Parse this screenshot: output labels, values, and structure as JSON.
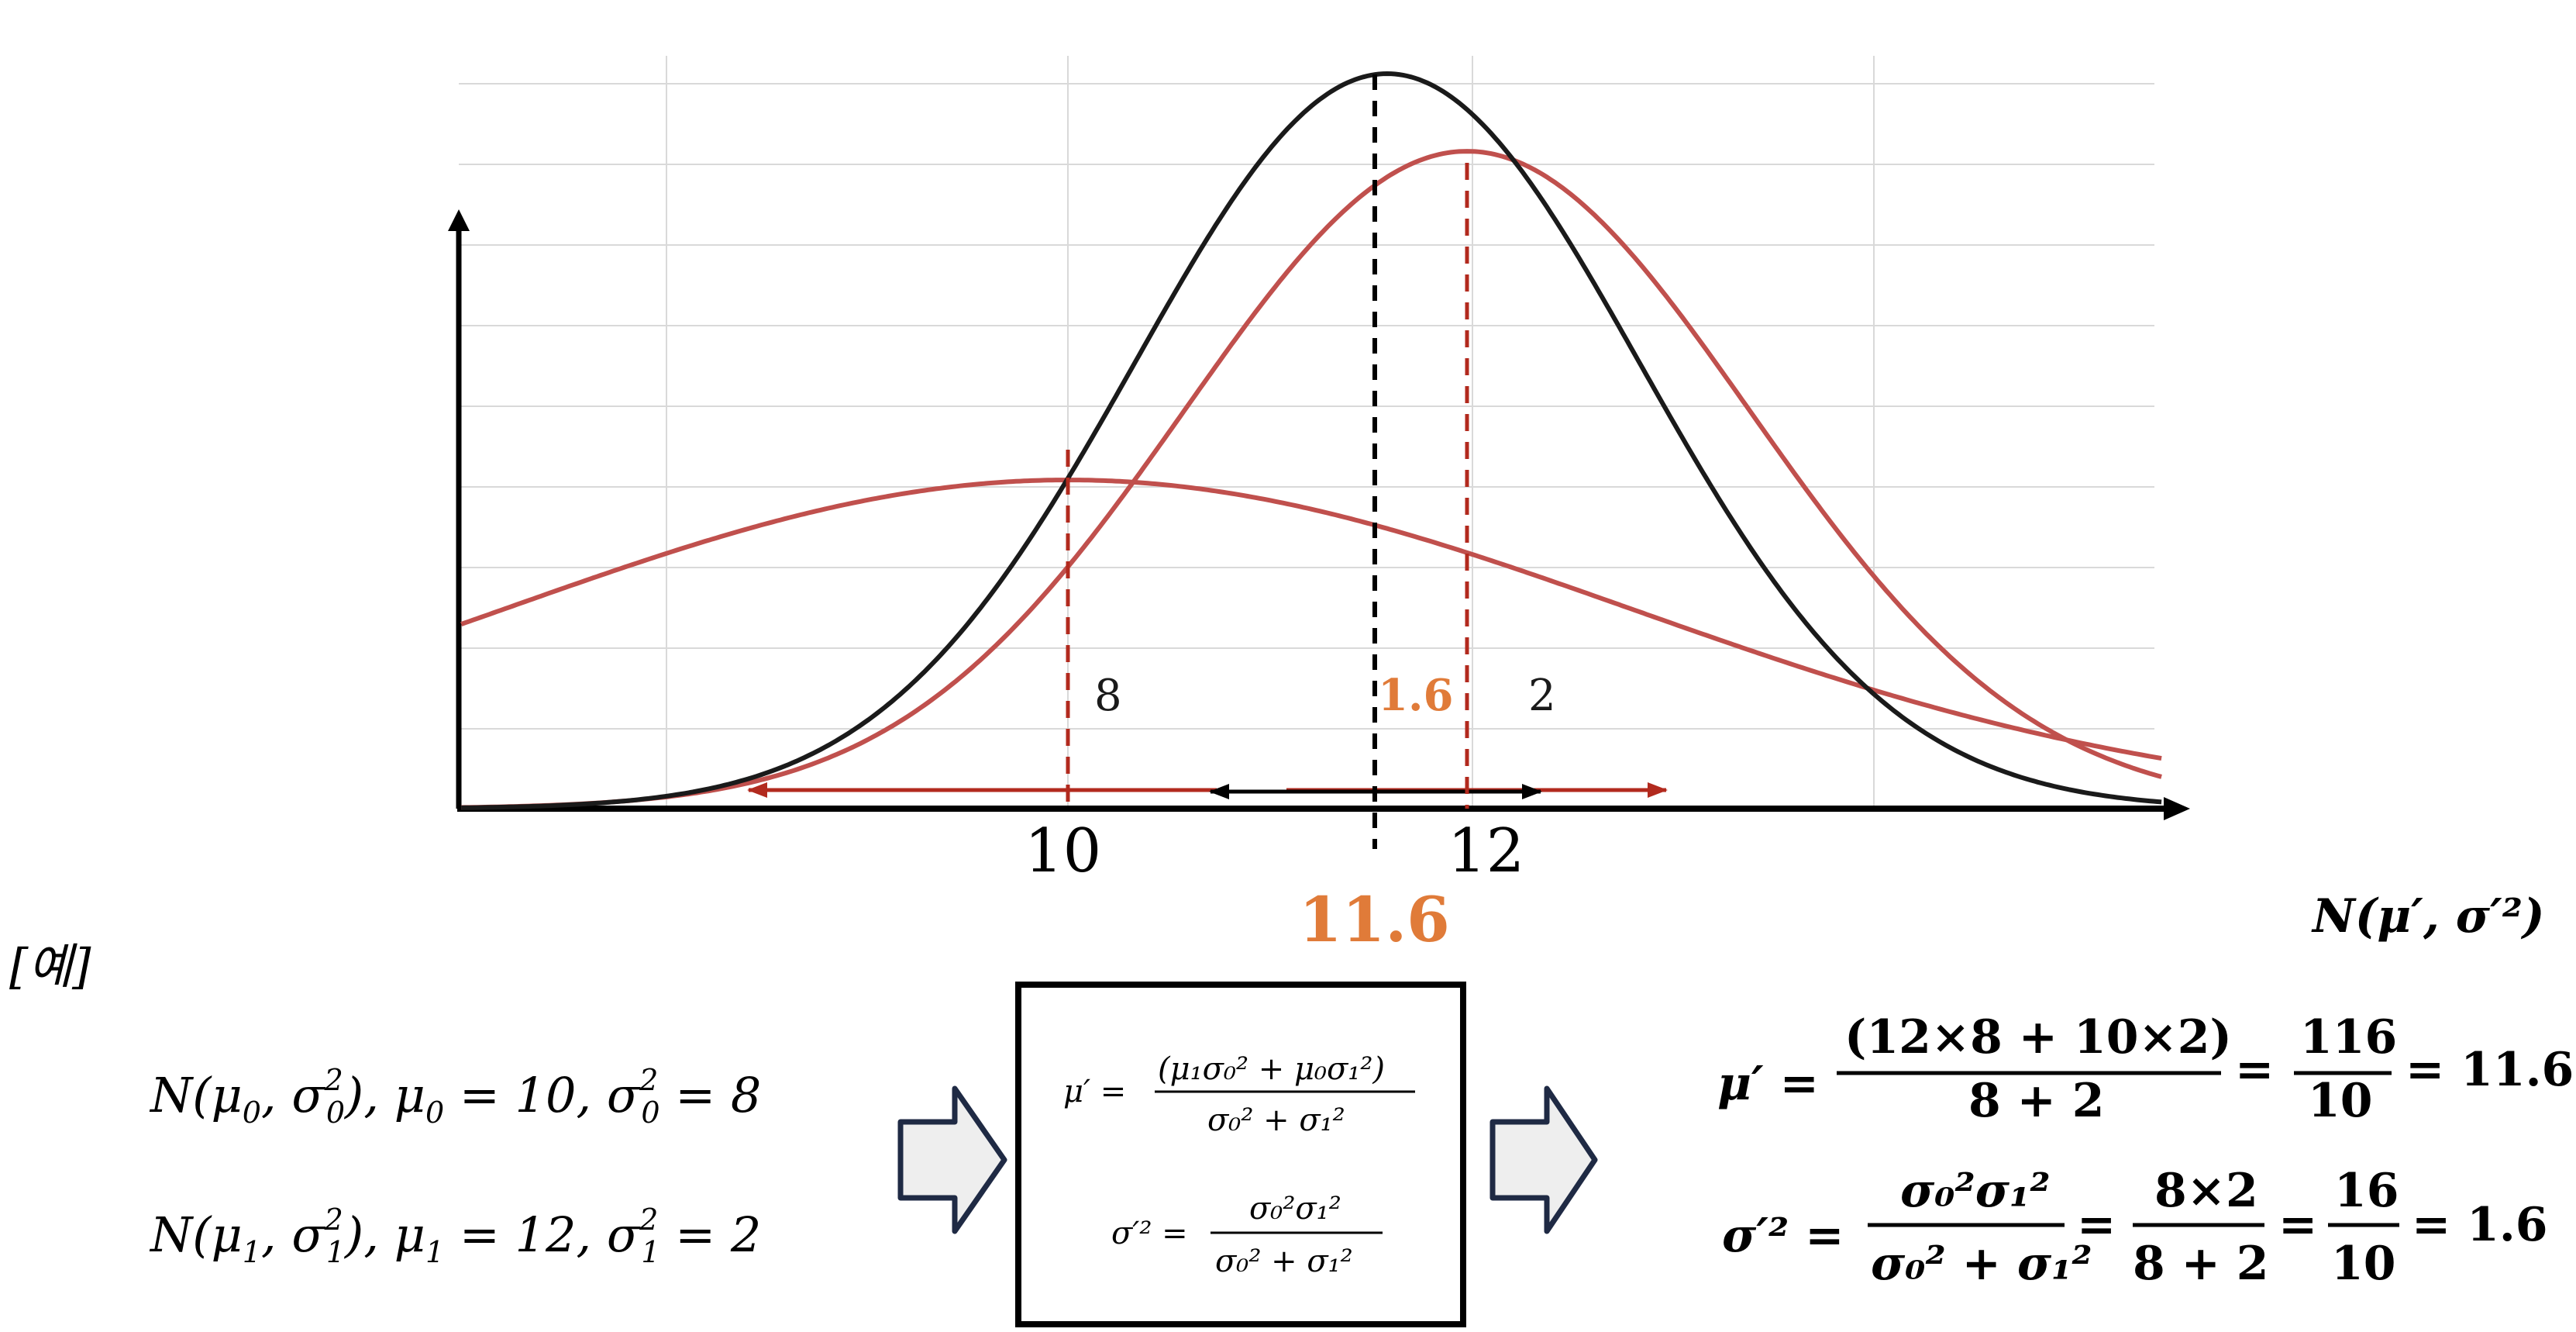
{
  "labels": {
    "example": "[예]",
    "value_8": "8",
    "value_2": "2",
    "posterior_variance": "1.6",
    "posterior_mean": "11.6",
    "tick_10": "10",
    "tick_12": "12"
  },
  "colors": {
    "prior_curve": "#c0504d",
    "posterior_curve": "#1a1a1a",
    "dashed_red": "#b22a1e",
    "accent_orange": "#e07b39",
    "grid": "#d9d9d9",
    "arrow_fill": "#eeeeee",
    "arrow_stroke": "#1f2a44"
  },
  "given": {
    "line1": {
      "prefix": "N(μ",
      "sub0": "0",
      "mid": ", σ",
      "sub0b": "0",
      "rest": "), μ",
      "eq": " = 10, σ",
      "eq2": " = 8"
    },
    "line2": {
      "prefix": "N(μ",
      "sub": "1",
      "rest": " = 12, σ",
      "eq2": " = 2"
    }
  },
  "formula_box": {
    "mu_lhs": "μ′ =",
    "mu_num": "(μ₁σ₀² + μ₀σ₁²)",
    "mu_den": "σ₀² + σ₁²",
    "var_lhs": "σ′² =",
    "var_num": "σ₀²σ₁²",
    "var_den": "σ₀² + σ₁²"
  },
  "result": {
    "dist": "N(μ′, σ′²)",
    "mu_lhs": "μ′ =",
    "mu_num": "(12×8 + 10×2)",
    "mu_den": "8 + 2",
    "mu_eq": "=",
    "mu_frac_num": "116",
    "mu_frac_den": "10",
    "mu_value": "= 11.6",
    "var_lhs": "σ′² =",
    "var_num": "σ₀²σ₁²",
    "var_den": "σ₀² + σ₁²",
    "var_eq": "=",
    "var_frac1_num": "8×2",
    "var_frac1_den": "8 + 2",
    "var_eq2": "=",
    "var_frac2_num": "16",
    "var_frac2_den": "10",
    "var_value": "= 1.6"
  },
  "chart_data": {
    "type": "line",
    "title": "",
    "xlabel": "",
    "ylabel": "",
    "x_ticks": [
      "10",
      "12"
    ],
    "grid": true,
    "series": [
      {
        "mean": 10,
        "variance": 8,
        "color": "#c0504d"
      },
      {
        "mean": 12,
        "variance": 2,
        "color": "#c0504d"
      },
      {
        "mean": 11.6,
        "variance": 1.6,
        "color": "#1a1a1a"
      }
    ],
    "annotations": [
      "8",
      "2",
      "1.6",
      "11.6"
    ]
  }
}
